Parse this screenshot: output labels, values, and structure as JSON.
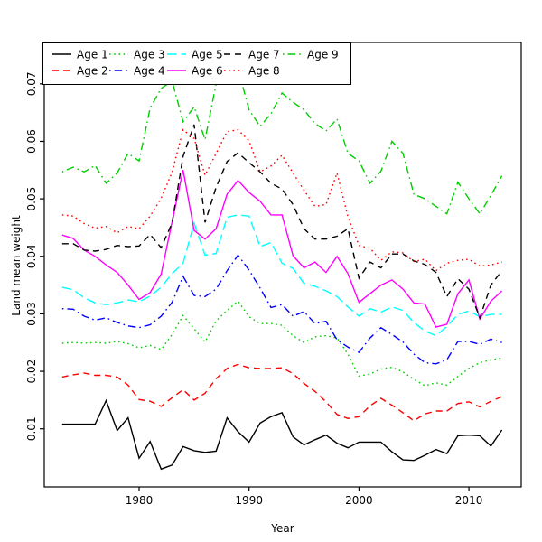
{
  "chart_data": {
    "type": "line",
    "title": "",
    "xlabel": "Year",
    "ylabel": "Land mean weight",
    "grid": false,
    "legend_position": "top-left",
    "xlim": [
      1971.37,
      2014.76
    ],
    "ylim": [
      -0.0001,
      0.0772
    ],
    "xticks": [
      1980,
      1990,
      2000,
      2010
    ],
    "yticks": [
      0.01,
      0.02,
      0.03,
      0.04,
      0.05,
      0.06,
      0.07
    ],
    "x": [
      1973,
      1974,
      1975,
      1976,
      1977,
      1978,
      1979,
      1980,
      1981,
      1982,
      1983,
      1984,
      1985,
      1986,
      1987,
      1988,
      1989,
      1990,
      1991,
      1992,
      1993,
      1994,
      1995,
      1996,
      1997,
      1998,
      1999,
      2000,
      2001,
      2002,
      2003,
      2004,
      2005,
      2006,
      2007,
      2008,
      2009,
      2010,
      2011,
      2012,
      2013
    ],
    "series": [
      {
        "name": "Age 1",
        "color": "#000000",
        "dash": "solid",
        "values": [
          0.0108,
          0.0108,
          0.0108,
          0.0108,
          0.0149,
          0.0097,
          0.0119,
          0.0049,
          0.0078,
          0.003,
          0.0037,
          0.0069,
          0.0062,
          0.0059,
          0.0061,
          0.0119,
          0.0095,
          0.0077,
          0.011,
          0.0121,
          0.0128,
          0.0086,
          0.0072,
          0.0081,
          0.0089,
          0.0075,
          0.0067,
          0.0077,
          0.0077,
          0.0077,
          0.006,
          0.0046,
          0.0045,
          0.0054,
          0.0064,
          0.0057,
          0.0088,
          0.0089,
          0.0088,
          0.007,
          0.0098
        ]
      },
      {
        "name": "Age 2",
        "color": "#FF0000",
        "dash": "dashed",
        "values": [
          0.019,
          0.0194,
          0.0197,
          0.0193,
          0.0193,
          0.019,
          0.0176,
          0.0151,
          0.0148,
          0.0139,
          0.0154,
          0.0168,
          0.015,
          0.0162,
          0.0187,
          0.0205,
          0.0212,
          0.0206,
          0.0205,
          0.0205,
          0.0206,
          0.0196,
          0.0179,
          0.0165,
          0.0147,
          0.0125,
          0.0118,
          0.0121,
          0.014,
          0.0153,
          0.0141,
          0.0128,
          0.0114,
          0.0126,
          0.0131,
          0.0131,
          0.0144,
          0.0147,
          0.0138,
          0.0148,
          0.0156
        ]
      },
      {
        "name": "Age 3",
        "color": "#00CD00",
        "dash": "dotted",
        "values": [
          0.0249,
          0.025,
          0.0249,
          0.025,
          0.0249,
          0.0252,
          0.0248,
          0.0241,
          0.0245,
          0.0238,
          0.0264,
          0.0297,
          0.0274,
          0.0251,
          0.0288,
          0.0306,
          0.0322,
          0.0295,
          0.0283,
          0.0283,
          0.028,
          0.0262,
          0.025,
          0.026,
          0.0262,
          0.0258,
          0.023,
          0.0192,
          0.0195,
          0.0204,
          0.0207,
          0.0199,
          0.0186,
          0.0175,
          0.018,
          0.0176,
          0.0191,
          0.0205,
          0.0215,
          0.022,
          0.0223
        ]
      },
      {
        "name": "Age 4",
        "color": "#0000FF",
        "dash": "dotdash",
        "values": [
          0.0309,
          0.0308,
          0.0296,
          0.0289,
          0.0293,
          0.0285,
          0.0279,
          0.0276,
          0.0281,
          0.0296,
          0.032,
          0.0365,
          0.0332,
          0.033,
          0.0343,
          0.0375,
          0.0402,
          0.0376,
          0.0345,
          0.0311,
          0.0316,
          0.0296,
          0.0304,
          0.0283,
          0.0287,
          0.0255,
          0.0242,
          0.0233,
          0.0258,
          0.0276,
          0.0264,
          0.0251,
          0.023,
          0.0215,
          0.0213,
          0.022,
          0.0252,
          0.0252,
          0.0247,
          0.0256,
          0.025
        ]
      },
      {
        "name": "Age 5",
        "color": "#00FFFF",
        "dash": "longdash",
        "values": [
          0.0346,
          0.0342,
          0.0328,
          0.0319,
          0.0316,
          0.0319,
          0.0324,
          0.0321,
          0.0331,
          0.0346,
          0.037,
          0.0388,
          0.0458,
          0.0402,
          0.0405,
          0.0468,
          0.0472,
          0.047,
          0.0417,
          0.0424,
          0.0388,
          0.0379,
          0.0353,
          0.0348,
          0.034,
          0.033,
          0.0312,
          0.0296,
          0.0309,
          0.0303,
          0.0312,
          0.0306,
          0.0285,
          0.027,
          0.0262,
          0.0278,
          0.0299,
          0.0305,
          0.0295,
          0.0299,
          0.0299
        ]
      },
      {
        "name": "Age 6",
        "color": "#FF00FF",
        "dash": "solid",
        "values": [
          0.0437,
          0.0431,
          0.0411,
          0.04,
          0.0385,
          0.0372,
          0.035,
          0.0325,
          0.0337,
          0.0369,
          0.046,
          0.055,
          0.0445,
          0.043,
          0.0448,
          0.0508,
          0.0532,
          0.0511,
          0.0496,
          0.0472,
          0.0472,
          0.0401,
          0.038,
          0.039,
          0.0372,
          0.04,
          0.037,
          0.032,
          0.0335,
          0.035,
          0.0359,
          0.0343,
          0.0319,
          0.0317,
          0.0277,
          0.0282,
          0.0335,
          0.0359,
          0.0291,
          0.0322,
          0.034
        ]
      },
      {
        "name": "Age 7",
        "color": "#000000",
        "dash": "dashed",
        "values": [
          0.0422,
          0.0422,
          0.0411,
          0.0409,
          0.0412,
          0.0419,
          0.0417,
          0.0418,
          0.0438,
          0.0415,
          0.0458,
          0.0574,
          0.0629,
          0.0459,
          0.052,
          0.0565,
          0.058,
          0.0563,
          0.0547,
          0.0527,
          0.0517,
          0.049,
          0.0448,
          0.043,
          0.043,
          0.0435,
          0.0448,
          0.0362,
          0.039,
          0.038,
          0.0404,
          0.0404,
          0.0392,
          0.0386,
          0.0372,
          0.033,
          0.0361,
          0.0343,
          0.0293,
          0.035,
          0.0375
        ]
      },
      {
        "name": "Age 8",
        "color": "#FF0000",
        "dash": "dotted",
        "values": [
          0.0472,
          0.047,
          0.0457,
          0.0449,
          0.0452,
          0.0441,
          0.0452,
          0.0448,
          0.047,
          0.0501,
          0.0546,
          0.062,
          0.0605,
          0.0541,
          0.0579,
          0.0617,
          0.062,
          0.0601,
          0.0547,
          0.0557,
          0.0576,
          0.0545,
          0.0515,
          0.0487,
          0.049,
          0.0545,
          0.0469,
          0.0419,
          0.0414,
          0.0393,
          0.0408,
          0.0406,
          0.0391,
          0.0395,
          0.0375,
          0.0388,
          0.0393,
          0.0395,
          0.0383,
          0.0385,
          0.039
        ]
      },
      {
        "name": "Age 9",
        "color": "#00CD00",
        "dash": "dotdash",
        "values": [
          0.0547,
          0.0555,
          0.0547,
          0.0558,
          0.0527,
          0.0545,
          0.0579,
          0.0566,
          0.0658,
          0.0692,
          0.0705,
          0.0634,
          0.066,
          0.0603,
          0.07,
          0.0723,
          0.0726,
          0.0655,
          0.0626,
          0.0648,
          0.0684,
          0.0668,
          0.0655,
          0.0631,
          0.0618,
          0.0639,
          0.0579,
          0.0566,
          0.0527,
          0.0548,
          0.06,
          0.0579,
          0.0508,
          0.05,
          0.0487,
          0.0474,
          0.0529,
          0.05,
          0.0474,
          0.0506,
          0.054
        ]
      }
    ],
    "tick_label_format": {
      "y_decimals": 2
    }
  }
}
